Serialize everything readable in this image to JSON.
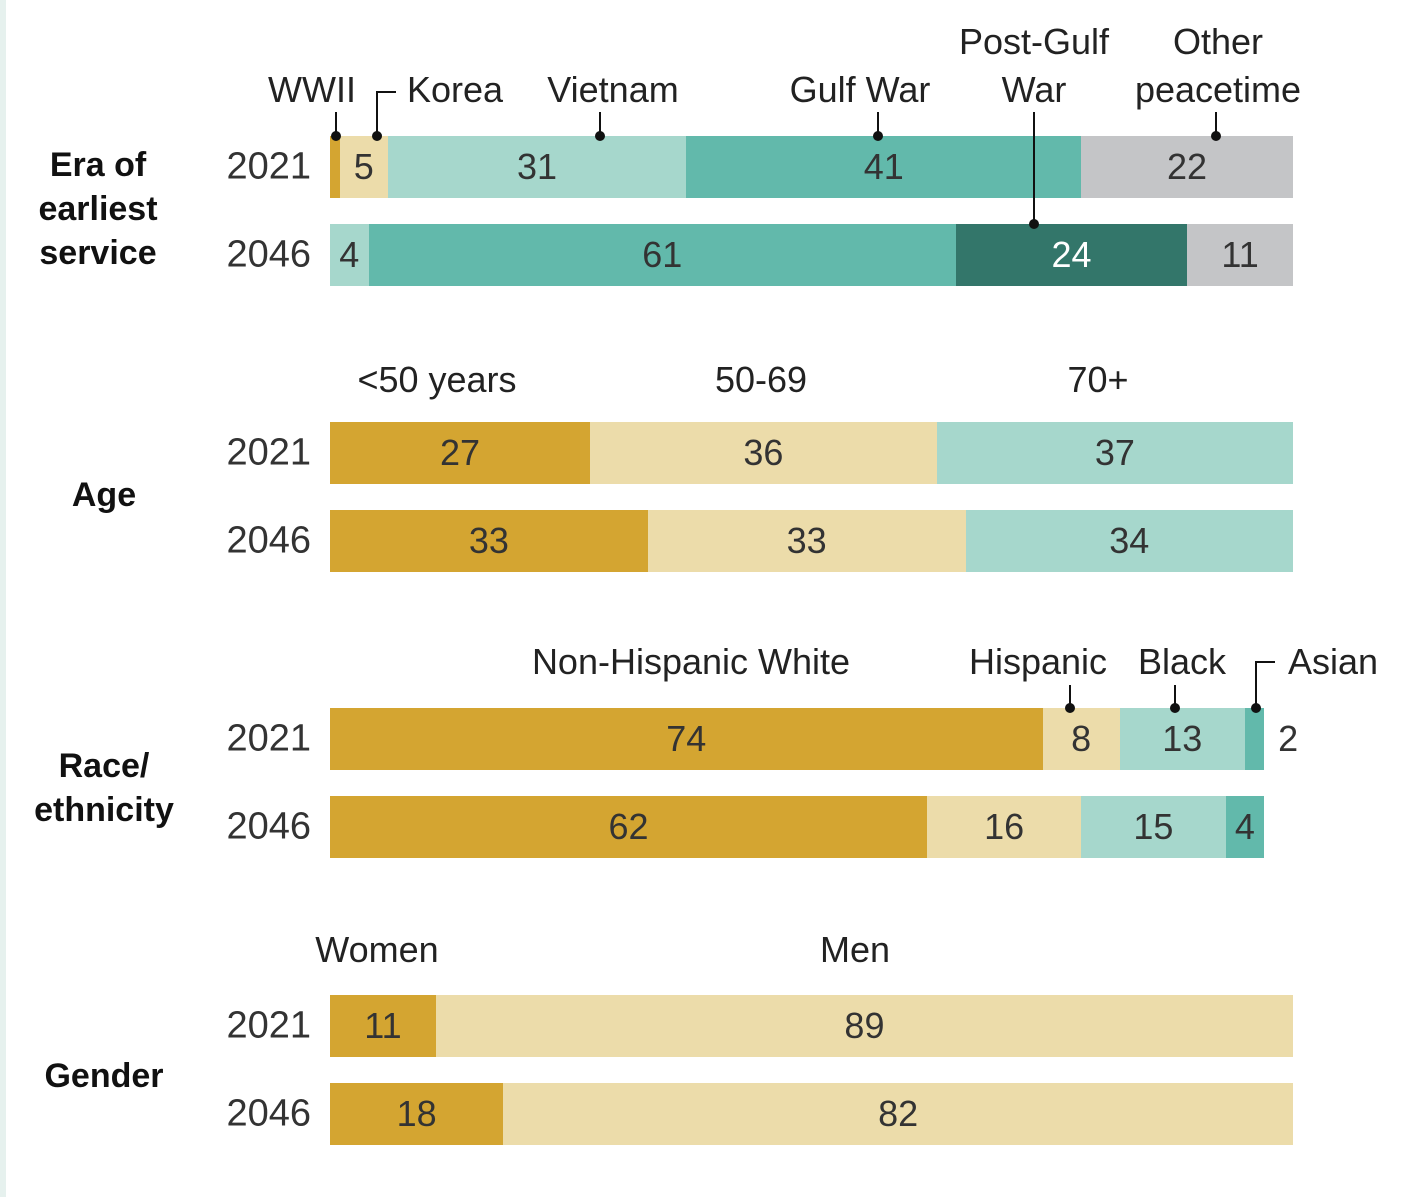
{
  "chart_data": [
    {
      "type": "bar",
      "orientation": "horizontal",
      "stacked": true,
      "title": "Era of earliest service",
      "categories": [
        "2021",
        "2046"
      ],
      "xlim": [
        0,
        100
      ],
      "series": [
        {
          "name": "WWII",
          "color": "#d4a531",
          "values": [
            1,
            null
          ]
        },
        {
          "name": "Korea",
          "color": "#ecdcaa",
          "values": [
            5,
            null
          ]
        },
        {
          "name": "Vietnam",
          "color": "#a6d7cc",
          "values": [
            31,
            4
          ]
        },
        {
          "name": "Gulf War",
          "color": "#62b9ab",
          "values": [
            41,
            61
          ]
        },
        {
          "name": "Post-Gulf War",
          "color": "#33766a",
          "values": [
            null,
            24
          ]
        },
        {
          "name": "Other peacetime",
          "color": "#c4c5c7",
          "values": [
            22,
            11
          ]
        }
      ]
    },
    {
      "type": "bar",
      "orientation": "horizontal",
      "stacked": true,
      "title": "Age",
      "categories": [
        "2021",
        "2046"
      ],
      "xlim": [
        0,
        100
      ],
      "series": [
        {
          "name": "<50 years",
          "color": "#d4a531",
          "values": [
            27,
            33
          ]
        },
        {
          "name": "50-69",
          "color": "#ecdcaa",
          "values": [
            36,
            33
          ]
        },
        {
          "name": "70+",
          "color": "#a6d7cc",
          "values": [
            37,
            34
          ]
        }
      ]
    },
    {
      "type": "bar",
      "orientation": "horizontal",
      "stacked": true,
      "title": "Race/ ethnicity",
      "categories": [
        "2021",
        "2046"
      ],
      "xlim": [
        0,
        100
      ],
      "series": [
        {
          "name": "Non-Hispanic White",
          "color": "#d4a531",
          "values": [
            74,
            62
          ]
        },
        {
          "name": "Hispanic",
          "color": "#ecdcaa",
          "values": [
            8,
            16
          ]
        },
        {
          "name": "Black",
          "color": "#a6d7cc",
          "values": [
            13,
            15
          ]
        },
        {
          "name": "Asian",
          "color": "#62b9ab",
          "values": [
            2,
            4
          ]
        }
      ]
    },
    {
      "type": "bar",
      "orientation": "horizontal",
      "stacked": true,
      "title": "Gender",
      "categories": [
        "2021",
        "2046"
      ],
      "xlim": [
        0,
        100
      ],
      "series": [
        {
          "name": "Women",
          "color": "#d4a531",
          "values": [
            11,
            18
          ]
        },
        {
          "name": "Men",
          "color": "#ecdcaa",
          "values": [
            89,
            82
          ]
        }
      ]
    }
  ]
}
